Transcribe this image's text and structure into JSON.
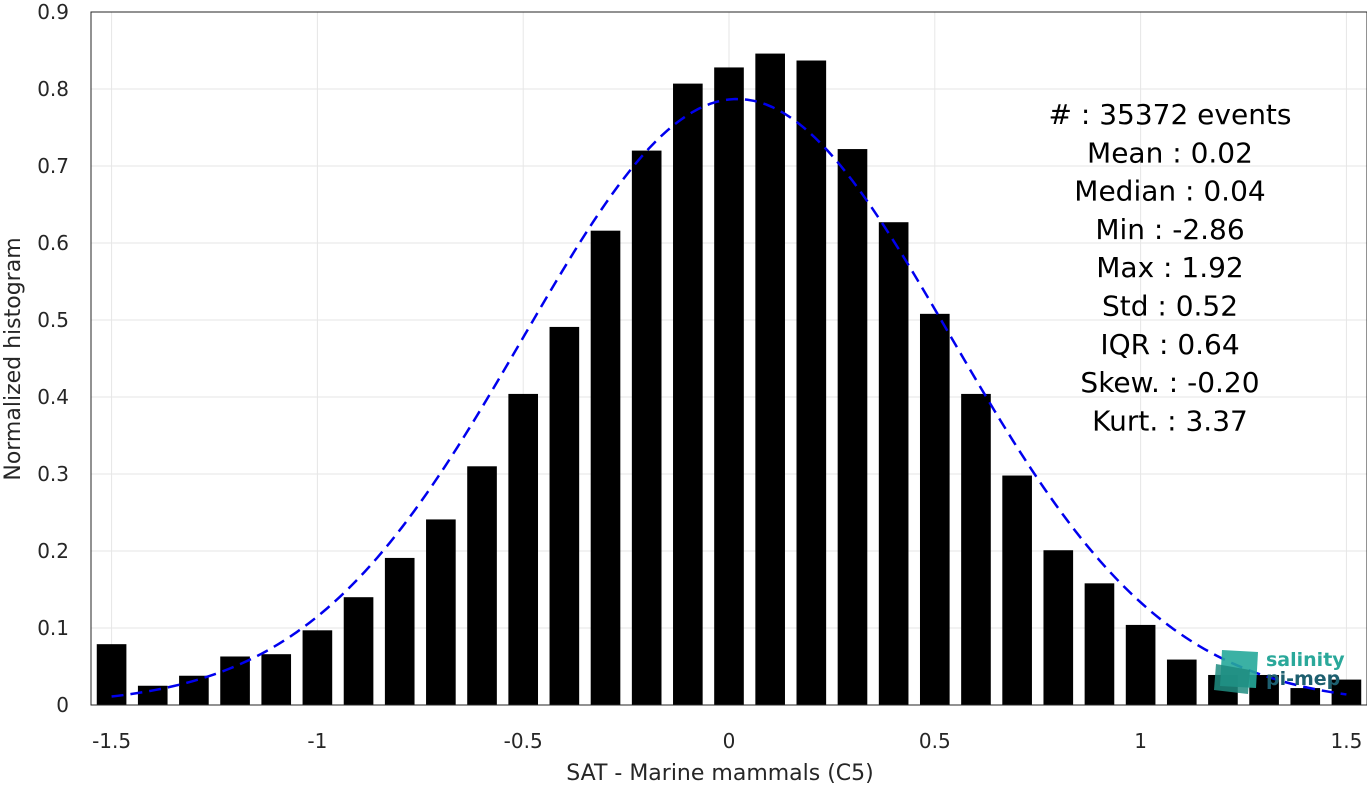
{
  "chart_data": {
    "type": "bar",
    "xlabel": "SAT - Marine mammals (C5)",
    "ylabel": "Normalized histogram",
    "xlim": [
      -1.55,
      1.55
    ],
    "ylim": [
      0,
      0.9
    ],
    "grid": true,
    "x_ticks": [
      "-1.5",
      "-1",
      "-0.5",
      "0",
      "0.5",
      "1",
      "1.5"
    ],
    "y_ticks": [
      "0",
      "0.1",
      "0.2",
      "0.3",
      "0.4",
      "0.5",
      "0.6",
      "0.7",
      "0.8",
      "0.9"
    ],
    "x": [
      -1.5,
      -1.4,
      -1.3,
      -1.2,
      -1.1,
      -1.0,
      -0.9,
      -0.8,
      -0.7,
      -0.6,
      -0.5,
      -0.4,
      -0.3,
      -0.2,
      -0.1,
      0.0,
      0.1,
      0.2,
      0.3,
      0.4,
      0.5,
      0.6,
      0.7,
      0.8,
      0.9,
      1.0,
      1.1,
      1.2,
      1.3,
      1.4,
      1.5
    ],
    "values": [
      0.079,
      0.025,
      0.038,
      0.063,
      0.066,
      0.097,
      0.14,
      0.191,
      0.241,
      0.31,
      0.404,
      0.491,
      0.616,
      0.72,
      0.807,
      0.828,
      0.846,
      0.837,
      0.722,
      0.627,
      0.508,
      0.404,
      0.298,
      0.201,
      0.158,
      0.104,
      0.059,
      0.039,
      0.039,
      0.022,
      0.033
    ],
    "bar_color": "#000000",
    "fit_curve": {
      "style": "dashed",
      "color": "#0000ee",
      "mean": 0.02,
      "std": 0.52,
      "peak": 0.787
    },
    "stats": [
      {
        "label": "#  ",
        "value": ": 35372 events"
      },
      {
        "label": "Mean",
        "value": ": 0.02"
      },
      {
        "label": "Median",
        "value": ": 0.04"
      },
      {
        "label": "Min",
        "value": ": -2.86"
      },
      {
        "label": "Max",
        "value": ": 1.92"
      },
      {
        "label": "Std",
        "value": ": 0.52"
      },
      {
        "label": "IQR",
        "value": ": 0.64"
      },
      {
        "label": "Skew.",
        "value": ": -0.20"
      },
      {
        "label": "Kurt.",
        "value": ": 3.37"
      }
    ]
  },
  "logo": {
    "line1": "salinity",
    "line2": "pi-mep",
    "color1": "#2aa89a",
    "color2": "#1d5f6f"
  }
}
